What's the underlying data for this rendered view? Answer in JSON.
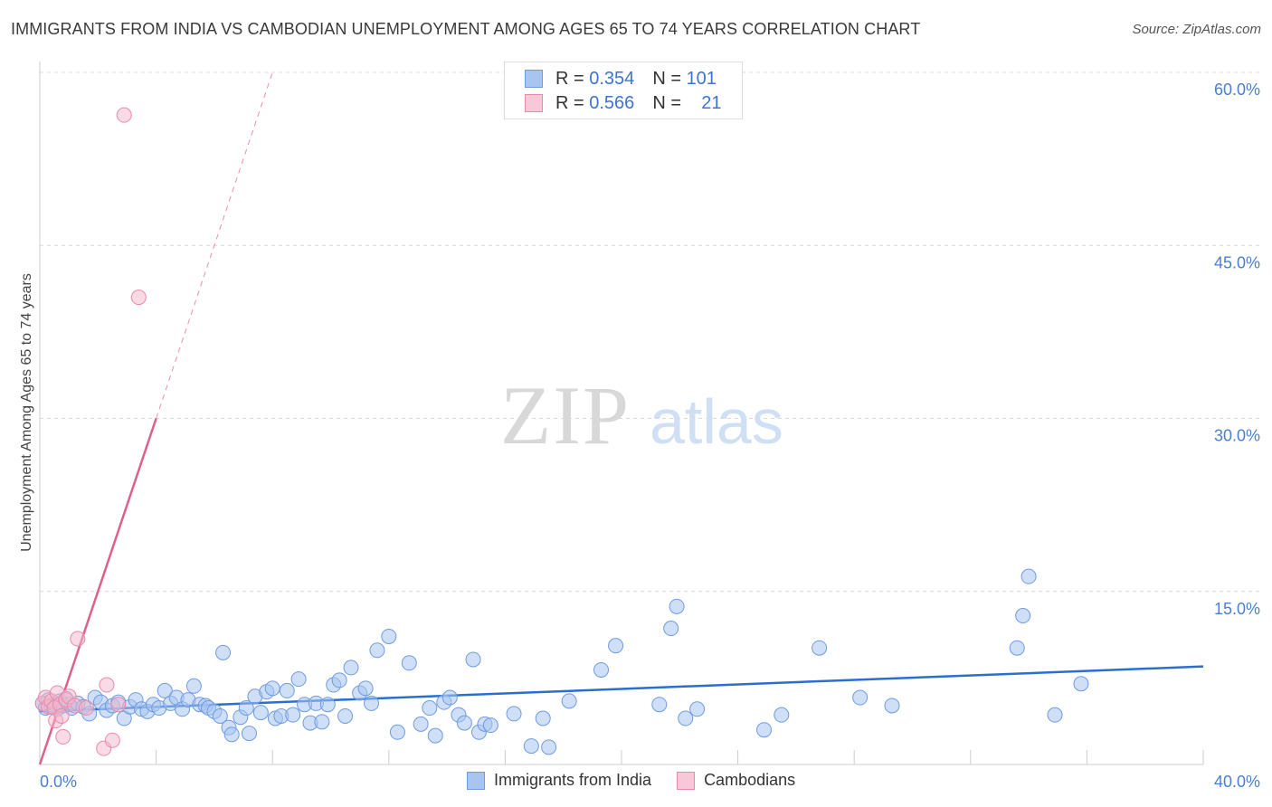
{
  "title": "IMMIGRANTS FROM INDIA VS CAMBODIAN UNEMPLOYMENT AMONG AGES 65 TO 74 YEARS CORRELATION CHART",
  "source": "Source: ZipAtlas.com",
  "watermark": {
    "zip": "ZIP",
    "atlas": "atlas"
  },
  "legend": {
    "india": {
      "r_label": "R =",
      "r": "0.354",
      "n_label": "N =",
      "n": "101"
    },
    "cambodia": {
      "r_label": "R =",
      "r": "0.566",
      "n_label": "N =",
      "n": "21"
    }
  },
  "bottom_legend": {
    "india": "Immigrants from India",
    "cambodia": "Cambodians"
  },
  "colors": {
    "india_fill": "#a8c4f0",
    "india_stroke": "#6f9be0",
    "india_line": "#2a6fcf",
    "cambodia_fill": "#f5b8cb",
    "cambodia_stroke": "#e88aa8",
    "cambodia_line": "#e0608c",
    "tick": "#4a7fd0",
    "grid": "#d8d8d8"
  },
  "chart_data": {
    "type": "scatter",
    "title": "IMMIGRANTS FROM INDIA VS CAMBODIAN UNEMPLOYMENT AMONG AGES 65 TO 74 YEARS CORRELATION CHART",
    "xlabel": "",
    "ylabel": "Unemployment Among Ages 65 to 74 years",
    "xlim": [
      0,
      40
    ],
    "ylim": [
      0,
      60
    ],
    "x_tick_labels": [
      "0.0%",
      "40.0%"
    ],
    "y_ticks": [
      15,
      30,
      45,
      60
    ],
    "y_tick_labels": [
      "15.0%",
      "30.0%",
      "45.0%",
      "60.0%"
    ],
    "series": [
      {
        "name": "Immigrants from India",
        "trend": {
          "x": [
            0,
            40
          ],
          "y": [
            4.6,
            8.5
          ]
        },
        "points": [
          [
            0.1,
            5.3
          ],
          [
            0.2,
            4.9
          ],
          [
            0.3,
            5.6
          ],
          [
            0.4,
            5.0
          ],
          [
            0.5,
            5.2
          ],
          [
            0.6,
            4.8
          ],
          [
            0.7,
            5.5
          ],
          [
            0.8,
            5.1
          ],
          [
            0.9,
            5.7
          ],
          [
            1.0,
            5.2
          ],
          [
            1.1,
            4.9
          ],
          [
            1.3,
            5.3
          ],
          [
            1.5,
            5.0
          ],
          [
            1.7,
            4.4
          ],
          [
            1.9,
            5.8
          ],
          [
            2.1,
            5.4
          ],
          [
            2.3,
            4.7
          ],
          [
            2.5,
            5.1
          ],
          [
            2.7,
            5.4
          ],
          [
            2.9,
            4.0
          ],
          [
            3.1,
            5.0
          ],
          [
            3.3,
            5.6
          ],
          [
            3.5,
            4.8
          ],
          [
            3.7,
            4.6
          ],
          [
            3.9,
            5.2
          ],
          [
            4.1,
            4.9
          ],
          [
            4.3,
            6.4
          ],
          [
            4.5,
            5.3
          ],
          [
            4.7,
            5.8
          ],
          [
            4.9,
            4.8
          ],
          [
            5.1,
            5.6
          ],
          [
            5.3,
            6.8
          ],
          [
            5.5,
            5.2
          ],
          [
            5.7,
            5.1
          ],
          [
            5.8,
            4.9
          ],
          [
            6.0,
            4.6
          ],
          [
            6.2,
            4.2
          ],
          [
            6.3,
            9.7
          ],
          [
            6.5,
            3.2
          ],
          [
            6.6,
            2.6
          ],
          [
            6.9,
            4.1
          ],
          [
            7.1,
            4.9
          ],
          [
            7.2,
            2.7
          ],
          [
            7.4,
            5.9
          ],
          [
            7.6,
            4.5
          ],
          [
            7.8,
            6.3
          ],
          [
            8.0,
            6.6
          ],
          [
            8.1,
            4.0
          ],
          [
            8.3,
            4.2
          ],
          [
            8.5,
            6.4
          ],
          [
            8.7,
            4.3
          ],
          [
            8.9,
            7.4
          ],
          [
            9.1,
            5.2
          ],
          [
            9.3,
            3.6
          ],
          [
            9.5,
            5.3
          ],
          [
            9.7,
            3.7
          ],
          [
            9.9,
            5.2
          ],
          [
            10.1,
            6.9
          ],
          [
            10.3,
            7.3
          ],
          [
            10.5,
            4.2
          ],
          [
            10.7,
            8.4
          ],
          [
            11.0,
            6.2
          ],
          [
            11.2,
            6.6
          ],
          [
            11.4,
            5.3
          ],
          [
            11.6,
            9.9
          ],
          [
            12.0,
            11.1
          ],
          [
            12.3,
            2.8
          ],
          [
            12.7,
            8.8
          ],
          [
            13.1,
            3.5
          ],
          [
            13.4,
            4.9
          ],
          [
            13.6,
            2.5
          ],
          [
            13.9,
            5.4
          ],
          [
            14.1,
            5.8
          ],
          [
            14.4,
            4.3
          ],
          [
            14.6,
            3.6
          ],
          [
            14.9,
            9.1
          ],
          [
            15.1,
            2.8
          ],
          [
            15.3,
            3.5
          ],
          [
            15.5,
            3.4
          ],
          [
            16.3,
            4.4
          ],
          [
            16.9,
            1.6
          ],
          [
            17.3,
            4.0
          ],
          [
            17.5,
            1.5
          ],
          [
            18.2,
            5.5
          ],
          [
            19.3,
            8.2
          ],
          [
            19.8,
            10.3
          ],
          [
            21.3,
            5.2
          ],
          [
            21.7,
            11.8
          ],
          [
            21.9,
            13.7
          ],
          [
            22.2,
            4.0
          ],
          [
            22.6,
            4.8
          ],
          [
            24.9,
            3.0
          ],
          [
            25.5,
            4.3
          ],
          [
            26.8,
            10.1
          ],
          [
            28.2,
            5.8
          ],
          [
            33.6,
            10.1
          ],
          [
            33.8,
            12.9
          ],
          [
            34.0,
            16.3
          ],
          [
            34.9,
            4.3
          ],
          [
            35.8,
            7.0
          ],
          [
            29.3,
            5.1
          ]
        ]
      },
      {
        "name": "Cambodians",
        "trend": {
          "x": [
            0,
            4.0
          ],
          "y": [
            0,
            30
          ]
        },
        "trend_extension": {
          "x": [
            4.0,
            8.0
          ],
          "y": [
            30,
            60
          ]
        },
        "points": [
          [
            0.1,
            5.3
          ],
          [
            0.2,
            5.8
          ],
          [
            0.3,
            5.0
          ],
          [
            0.4,
            5.5
          ],
          [
            0.5,
            4.9
          ],
          [
            0.55,
            3.8
          ],
          [
            0.6,
            6.2
          ],
          [
            0.7,
            5.2
          ],
          [
            0.75,
            4.2
          ],
          [
            0.8,
            2.4
          ],
          [
            0.9,
            5.6
          ],
          [
            1.0,
            5.9
          ],
          [
            1.2,
            5.1
          ],
          [
            1.3,
            10.9
          ],
          [
            1.6,
            4.9
          ],
          [
            2.2,
            1.4
          ],
          [
            2.3,
            6.9
          ],
          [
            2.5,
            2.1
          ],
          [
            2.7,
            5.2
          ],
          [
            2.9,
            56.3
          ],
          [
            3.4,
            40.5
          ]
        ]
      }
    ]
  }
}
